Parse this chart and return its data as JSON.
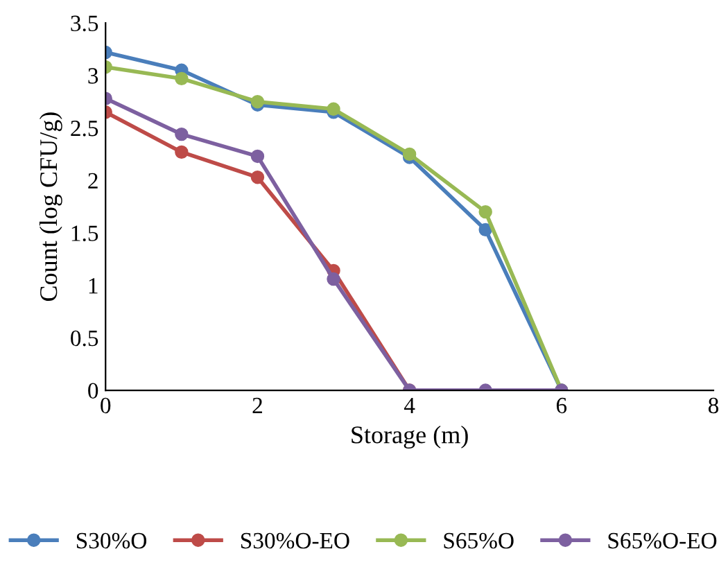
{
  "chart_data": {
    "type": "line",
    "xlabel": "Storage (m)",
    "ylabel": "Count (log CFU/g)",
    "x": [
      0,
      1,
      2,
      3,
      4,
      5,
      6
    ],
    "series": [
      {
        "name": "S30%O",
        "color": "#4a7ebb",
        "values": [
          3.22,
          3.05,
          2.72,
          2.65,
          2.22,
          1.53,
          0
        ]
      },
      {
        "name": "S30%O-EO",
        "color": "#be4b48",
        "values": [
          2.65,
          2.27,
          2.03,
          1.14,
          0,
          null,
          null
        ]
      },
      {
        "name": "S65%O",
        "color": "#98b954",
        "values": [
          3.08,
          2.97,
          2.75,
          2.68,
          2.25,
          1.7,
          0
        ]
      },
      {
        "name": "S65%O-EO",
        "color": "#7d60a0",
        "values": [
          2.78,
          2.44,
          2.23,
          1.06,
          0,
          0,
          0
        ]
      }
    ],
    "xlim": [
      0,
      8
    ],
    "xticks": [
      0,
      2,
      4,
      6,
      8
    ],
    "ylim": [
      0,
      3.5
    ],
    "yticks": [
      0,
      0.5,
      1,
      1.5,
      2,
      2.5,
      3,
      3.5
    ],
    "grid": false,
    "legend": "bottom",
    "marker": "circle",
    "line_style": "solid"
  }
}
